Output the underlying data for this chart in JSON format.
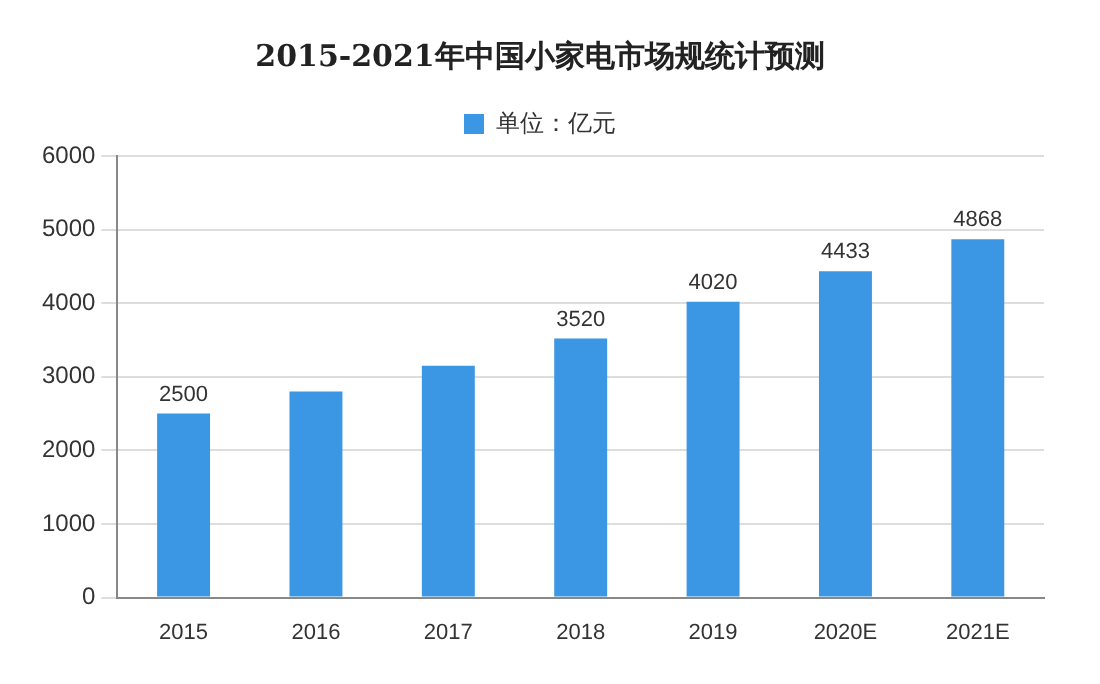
{
  "chart_data": {
    "type": "bar",
    "title": "2015-2021年中国小家电市场规统计预测",
    "categories": [
      "2015",
      "2016",
      "2017",
      "2018",
      "2019",
      "2020E",
      "2021E"
    ],
    "series": [
      {
        "name": "单位：亿元",
        "color": "#3b97e3",
        "values": [
          2500,
          2800,
          3150,
          3520,
          4020,
          4433,
          4868
        ],
        "value_labels": [
          "2500",
          null,
          null,
          "3520",
          "4020",
          "4433",
          "4868"
        ]
      }
    ],
    "ylim": [
      0,
      6000
    ],
    "yticks": [
      0,
      1000,
      2000,
      3000,
      4000,
      5000,
      6000
    ],
    "grid": "y",
    "legend": "top"
  }
}
